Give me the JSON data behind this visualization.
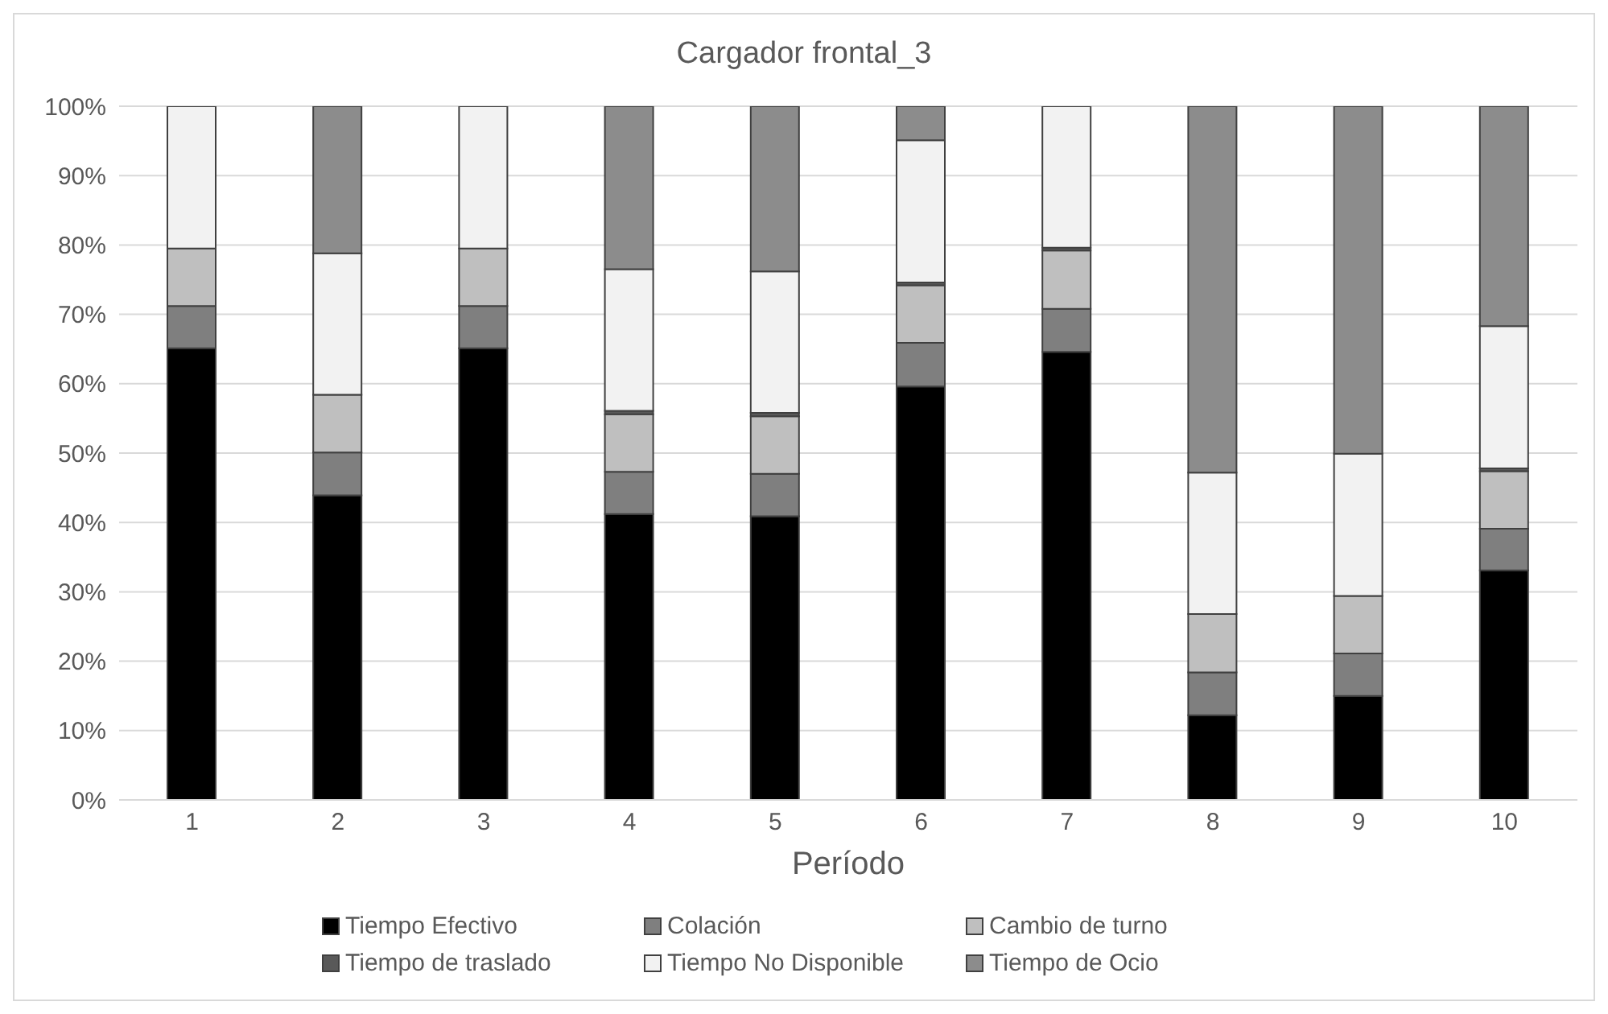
{
  "chart_data": {
    "type": "bar",
    "title": "Cargador frontal_3",
    "xlabel": "Período",
    "categories": [
      "1",
      "2",
      "3",
      "4",
      "5",
      "6",
      "7",
      "8",
      "9",
      "10"
    ],
    "stacked": true,
    "ylim": [
      0,
      100
    ],
    "yticks": [
      {
        "value": 0,
        "label": "0%"
      },
      {
        "value": 10,
        "label": "10%"
      },
      {
        "value": 20,
        "label": "20%"
      },
      {
        "value": 30,
        "label": "30%"
      },
      {
        "value": 40,
        "label": "40%"
      },
      {
        "value": 50,
        "label": "50%"
      },
      {
        "value": 60,
        "label": "60%"
      },
      {
        "value": 70,
        "label": "70%"
      },
      {
        "value": 80,
        "label": "80%"
      },
      {
        "value": 90,
        "label": "90%"
      },
      {
        "value": 100,
        "label": "100%"
      }
    ],
    "grid": "y",
    "legend": "bottom",
    "series": [
      {
        "name": "Tiempo Efectivo",
        "color": "#000000",
        "values": [
          65.1,
          43.9,
          65.1,
          41.2,
          40.9,
          59.6,
          64.6,
          12.2,
          15.0,
          33.1
        ]
      },
      {
        "name": "Colación",
        "color": "#7f7f7f",
        "values": [
          6.1,
          6.2,
          6.1,
          6.1,
          6.1,
          6.3,
          6.2,
          6.2,
          6.1,
          6.0
        ]
      },
      {
        "name": "Cambio de turno",
        "color": "#bfbfbf",
        "values": [
          8.3,
          8.3,
          8.3,
          8.3,
          8.3,
          8.3,
          8.4,
          8.4,
          8.3,
          8.3
        ]
      },
      {
        "name": "Tiempo de traslado",
        "color": "#595959",
        "values": [
          0,
          0,
          0,
          0.5,
          0.5,
          0.4,
          0.4,
          0,
          0,
          0.4
        ]
      },
      {
        "name": "Tiempo No Disponible",
        "color": "#f2f2f2",
        "values": [
          20.5,
          20.4,
          20.5,
          20.4,
          20.4,
          20.5,
          20.4,
          20.4,
          20.5,
          20.5
        ]
      },
      {
        "name": "Tiempo de Ocio",
        "color": "#8c8c8c",
        "values": [
          0,
          21.2,
          0,
          23.5,
          23.8,
          4.9,
          0,
          52.8,
          50.1,
          31.7
        ]
      }
    ]
  }
}
